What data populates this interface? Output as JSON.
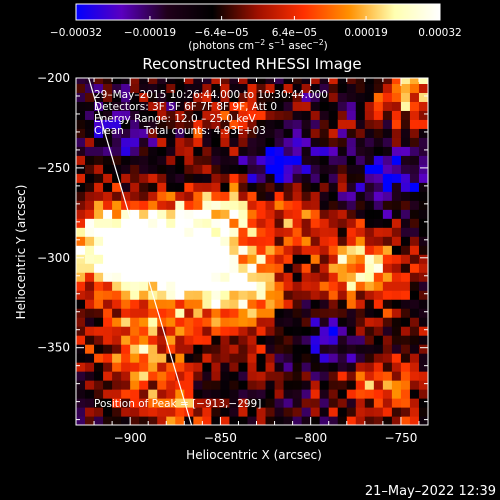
{
  "chart_data": {
    "type": "heatmap",
    "title": "Reconstructed RHESSI Image",
    "xlabel": "Heliocentric X (arcsec)",
    "ylabel": "Heliocentric Y (arcsec)",
    "xlim": [
      -930,
      -735
    ],
    "ylim": [
      -393,
      -200
    ],
    "x_ticks": [
      -900,
      -850,
      -800,
      -750
    ],
    "y_ticks": [
      -200,
      -250,
      -300,
      -350
    ],
    "x_tick_labels": [
      "−900",
      "−850",
      "−800",
      "−750"
    ],
    "y_tick_labels": [
      "−200",
      "−250",
      "−300",
      "−350"
    ],
    "colorbar": {
      "range": [
        -0.00032,
        0.00032
      ],
      "tick_values": [
        -0.00032,
        -0.00019,
        -6.4e-05,
        6.4e-05,
        0.00019,
        0.00032
      ],
      "tick_labels": [
        "−0.00032",
        "−0.00019",
        "−6.4e−05",
        "6.4e−05",
        "0.00019",
        "0.00032"
      ],
      "label_base": "(photons cm",
      "label_sup1": "−2",
      "label_mid": " s",
      "label_sup2": "−1",
      "label_mid2": " asec",
      "label_sup3": "−2",
      "label_end": ")",
      "stops": [
        "#0000ff",
        "#5a00c0",
        "#20001a",
        "#000000",
        "#a01000",
        "#ff3000",
        "#ff9000",
        "#ffffb0",
        "#ffffff"
      ]
    },
    "annotations": [
      "29–May–2015 10:26:44.000 to 10:30:44.000",
      "Detectors: 3F 5F 6F 7F 8F 9F, Att 0",
      "Energy Range: 12.0 – 25.0 keV",
      "Clean      Total counts: 4.93E+03"
    ],
    "peak_label": "Position of Peak = [−913,−299]",
    "peak": [
      -913,
      -299
    ],
    "limb_line": [
      [
        -923,
        -200
      ],
      [
        -866,
        -393
      ]
    ],
    "blobs": [
      {
        "x": -905,
        "y": -292,
        "sx": 22,
        "sy": 16,
        "amp": 1.0
      },
      {
        "x": -880,
        "y": -298,
        "sx": 26,
        "sy": 18,
        "amp": 0.85
      },
      {
        "x": -858,
        "y": -305,
        "sx": 22,
        "sy": 22,
        "amp": 0.75
      },
      {
        "x": -832,
        "y": -322,
        "sx": 14,
        "sy": 14,
        "amp": 0.5
      },
      {
        "x": -895,
        "y": -355,
        "sx": 16,
        "sy": 18,
        "amp": 0.6
      },
      {
        "x": -842,
        "y": -272,
        "sx": 14,
        "sy": 10,
        "amp": 0.45
      },
      {
        "x": -772,
        "y": -306,
        "sx": 18,
        "sy": 16,
        "amp": 0.75
      },
      {
        "x": -808,
        "y": -275,
        "sx": 10,
        "sy": 10,
        "amp": 0.5
      },
      {
        "x": -745,
        "y": -205,
        "sx": 12,
        "sy": 16,
        "amp": 0.7
      },
      {
        "x": -760,
        "y": -372,
        "sx": 14,
        "sy": 12,
        "amp": 0.55
      },
      {
        "x": -845,
        "y": -225,
        "sx": 20,
        "sy": 10,
        "amp": 0.35
      },
      {
        "x": -873,
        "y": -382,
        "sx": 12,
        "sy": 8,
        "amp": 0.45
      }
    ],
    "neg_blobs": [
      {
        "x": -818,
        "y": -245,
        "sx": 16,
        "sy": 14,
        "amp": 0.55
      },
      {
        "x": -755,
        "y": -255,
        "sx": 14,
        "sy": 14,
        "amp": 0.5
      },
      {
        "x": -905,
        "y": -228,
        "sx": 14,
        "sy": 12,
        "amp": 0.35
      },
      {
        "x": -790,
        "y": -345,
        "sx": 14,
        "sy": 12,
        "amp": 0.4
      }
    ]
  },
  "footer": {
    "timestamp": "21–May–2022 12:39"
  }
}
